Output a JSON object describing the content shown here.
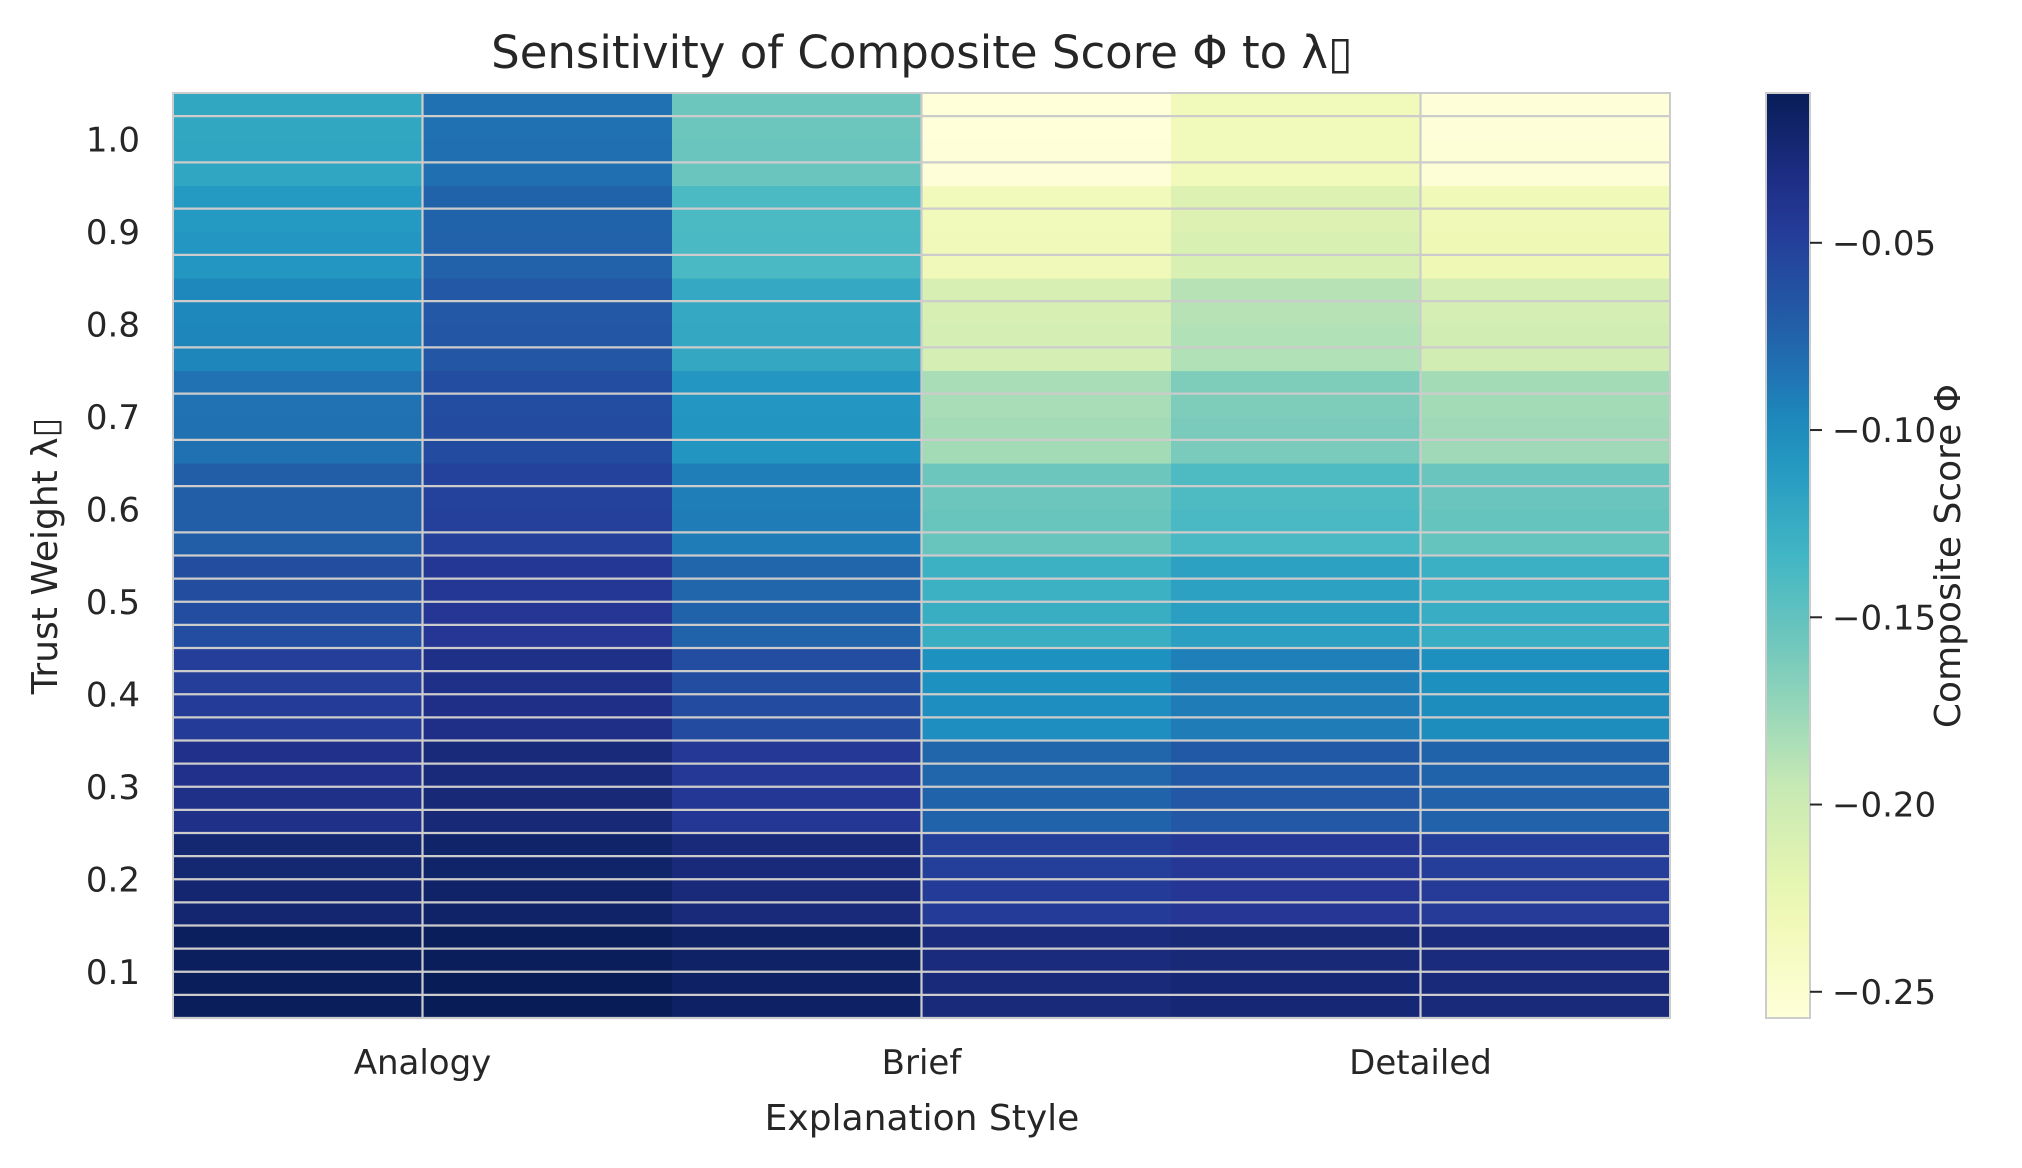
{
  "chart_data": {
    "type": "heatmap",
    "title": "Sensitivity of Composite Score Φ to λ▯",
    "xlabel": "Explanation Style",
    "ylabel": "Trust Weight λ▯",
    "x_tick_labels": [
      "Analogy",
      "Brief",
      "Detailed"
    ],
    "y_tick_labels": [
      "0.1",
      "0.2",
      "0.3",
      "0.4",
      "0.5",
      "0.6",
      "0.7",
      "0.8",
      "0.9",
      "1.0"
    ],
    "ylim": [
      0.05,
      1.05
    ],
    "colorbar": {
      "label": "Composite Score Φ",
      "colormap": "YlGnBu_r",
      "range": [
        -0.257,
        -0.01
      ],
      "ticks": [
        -0.25,
        -0.2,
        -0.15,
        -0.1,
        -0.05
      ],
      "tick_labels": [
        "−0.25",
        "−0.20",
        "−0.15",
        "−0.10",
        "−0.05"
      ]
    },
    "grid": true,
    "columns": 6,
    "rows_bottom_to_top_lambda": [
      0.05,
      0.1,
      0.15,
      0.2,
      0.25,
      0.3,
      0.35,
      0.4,
      0.45,
      0.5,
      0.55,
      0.6,
      0.65,
      0.7,
      0.75,
      0.8,
      0.85,
      0.9,
      0.95,
      1.0
    ],
    "values": [
      [
        -0.012,
        -0.01,
        -0.016,
        -0.028,
        -0.025,
        -0.028
      ],
      [
        -0.013,
        -0.011,
        -0.017,
        -0.029,
        -0.026,
        -0.029
      ],
      [
        -0.022,
        -0.018,
        -0.027,
        -0.047,
        -0.042,
        -0.046
      ],
      [
        -0.023,
        -0.019,
        -0.028,
        -0.049,
        -0.044,
        -0.048
      ],
      [
        -0.035,
        -0.026,
        -0.043,
        -0.075,
        -0.067,
        -0.074
      ],
      [
        -0.036,
        -0.027,
        -0.044,
        -0.076,
        -0.068,
        -0.075
      ],
      [
        -0.047,
        -0.034,
        -0.058,
        -0.101,
        -0.09,
        -0.1
      ],
      [
        -0.048,
        -0.035,
        -0.059,
        -0.103,
        -0.092,
        -0.102
      ],
      [
        -0.059,
        -0.042,
        -0.075,
        -0.127,
        -0.114,
        -0.126
      ],
      [
        -0.06,
        -0.043,
        -0.076,
        -0.129,
        -0.116,
        -0.128
      ],
      [
        -0.071,
        -0.05,
        -0.09,
        -0.153,
        -0.138,
        -0.152
      ],
      [
        -0.072,
        -0.051,
        -0.091,
        -0.155,
        -0.14,
        -0.154
      ],
      [
        -0.083,
        -0.058,
        -0.107,
        -0.18,
        -0.162,
        -0.178
      ],
      [
        -0.084,
        -0.059,
        -0.108,
        -0.182,
        -0.164,
        -0.18
      ],
      [
        -0.096,
        -0.066,
        -0.122,
        -0.206,
        -0.186,
        -0.204
      ],
      [
        -0.097,
        -0.067,
        -0.123,
        -0.208,
        -0.188,
        -0.206
      ],
      [
        -0.108,
        -0.074,
        -0.138,
        -0.232,
        -0.21,
        -0.229
      ],
      [
        -0.109,
        -0.075,
        -0.139,
        -0.234,
        -0.212,
        -0.231
      ],
      [
        -0.12,
        -0.082,
        -0.154,
        -0.256,
        -0.233,
        -0.254
      ],
      [
        -0.121,
        -0.083,
        -0.155,
        -0.257,
        -0.234,
        -0.256
      ]
    ]
  }
}
